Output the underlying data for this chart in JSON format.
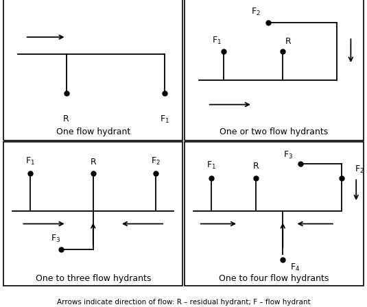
{
  "caption": "Arrows indicate direction of flow: R – residual hydrant; F – flow hydrant",
  "panel_titles": [
    "One flow hydrant",
    "One or two flow hydrants",
    "One to three flow hydrants",
    "One to four flow hydrants"
  ],
  "bg_color": "#ffffff",
  "line_color": "#000000",
  "dot_size": 5,
  "lw": 1.3,
  "title_fontsize": 9,
  "label_fontsize": 9
}
